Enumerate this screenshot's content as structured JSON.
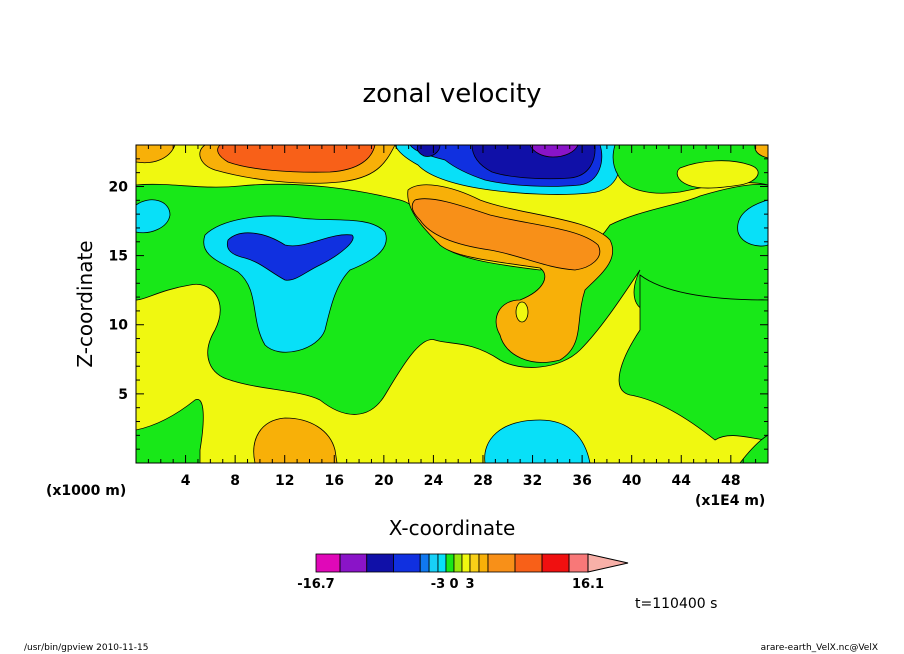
{
  "chart_data": {
    "type": "heatmap",
    "title": "zonal velocity",
    "xlabel": "X-coordinate",
    "ylabel": "Z-coordinate",
    "x_unit_left": "(x1000 m)",
    "x_unit_right": "(x1E4 m)",
    "xlim": [
      0,
      51
    ],
    "ylim": [
      0,
      23
    ],
    "x_ticks": [
      4,
      8,
      12,
      16,
      20,
      24,
      28,
      32,
      36,
      40,
      44,
      48
    ],
    "y_ticks": [
      5,
      10,
      15,
      20
    ],
    "colorbar": {
      "labels": [
        {
          "text": "-16.7",
          "value": -16.7
        },
        {
          "text": "-3",
          "value": -3
        },
        {
          "text": "0",
          "value": 0
        },
        {
          "text": "3",
          "value": 3
        },
        {
          "text": "16.1",
          "value": 16.1
        }
      ],
      "levels": [
        {
          "min": -16.7,
          "max": -14,
          "color": "#e008b8"
        },
        {
          "min": -14,
          "max": -11,
          "color": "#8a14c8"
        },
        {
          "min": -11,
          "max": -8,
          "color": "#1010a8"
        },
        {
          "min": -8,
          "max": -5,
          "color": "#1030e0"
        },
        {
          "min": -5,
          "max": -4,
          "color": "#1078f0"
        },
        {
          "min": -4,
          "max": -3,
          "color": "#18d0f8"
        },
        {
          "min": -3,
          "max": -1.5,
          "color": "#08e0f8"
        },
        {
          "min": -1.5,
          "max": 0,
          "color": "#18e818"
        },
        {
          "min": 0,
          "max": 1.5,
          "color": "#9ae80c"
        },
        {
          "min": 1.5,
          "max": 3,
          "color": "#f0f810"
        },
        {
          "min": 3,
          "max": 4,
          "color": "#f8d018"
        },
        {
          "min": 4,
          "max": 5,
          "color": "#f8b008"
        },
        {
          "min": 5,
          "max": 8,
          "color": "#f89018"
        },
        {
          "min": 8,
          "max": 11,
          "color": "#f86018"
        },
        {
          "min": 11,
          "max": 14,
          "color": "#f01010"
        },
        {
          "min": 14,
          "max": 16.1,
          "color": "#f87878"
        },
        {
          "min": 16.1,
          "max": 18,
          "color": "#f8b0a8"
        }
      ]
    },
    "regions": [
      {
        "level": "yellow",
        "center": [
          22,
          4
        ],
        "note": "background"
      },
      {
        "level": "green",
        "center": [
          8,
          10
        ]
      },
      {
        "level": "cyan",
        "center": [
          13,
          12
        ]
      },
      {
        "level": "blue",
        "center": [
          12,
          16
        ]
      },
      {
        "level": "orange",
        "center": [
          12,
          21.5
        ]
      },
      {
        "level": "red-orange",
        "center": [
          13,
          22.3
        ]
      },
      {
        "level": "orange",
        "center": [
          30,
          15
        ]
      },
      {
        "level": "cyan",
        "center": [
          28,
          21
        ]
      },
      {
        "level": "navy",
        "center": [
          33,
          21.5
        ]
      },
      {
        "level": "purple",
        "center": [
          34,
          22.7
        ]
      },
      {
        "level": "cyan",
        "center": [
          32,
          1.5
        ]
      },
      {
        "level": "orange",
        "center": [
          11,
          1.5
        ]
      },
      {
        "level": "cyan",
        "center": [
          1.5,
          18
        ]
      },
      {
        "level": "cyan",
        "center": [
          49.5,
          17.5
        ]
      }
    ]
  },
  "annotations": {
    "time": "t=110400 s",
    "footer_left": "/usr/bin/gpview   2010-11-15",
    "footer_right": "arare-earth_VelX.nc@VelX"
  },
  "colors": {
    "yellow": "#f0f810",
    "green": "#18e818",
    "cyan": "#08e0f8",
    "blue": "#1030e0",
    "navy": "#1010a8",
    "purple": "#8a14c8",
    "magenta": "#e008b8",
    "orange": "#f8b008",
    "darkorange": "#f89018",
    "redorange": "#f86018",
    "red": "#f01010",
    "pink": "#f87878",
    "lightpink": "#f8b0a8"
  }
}
